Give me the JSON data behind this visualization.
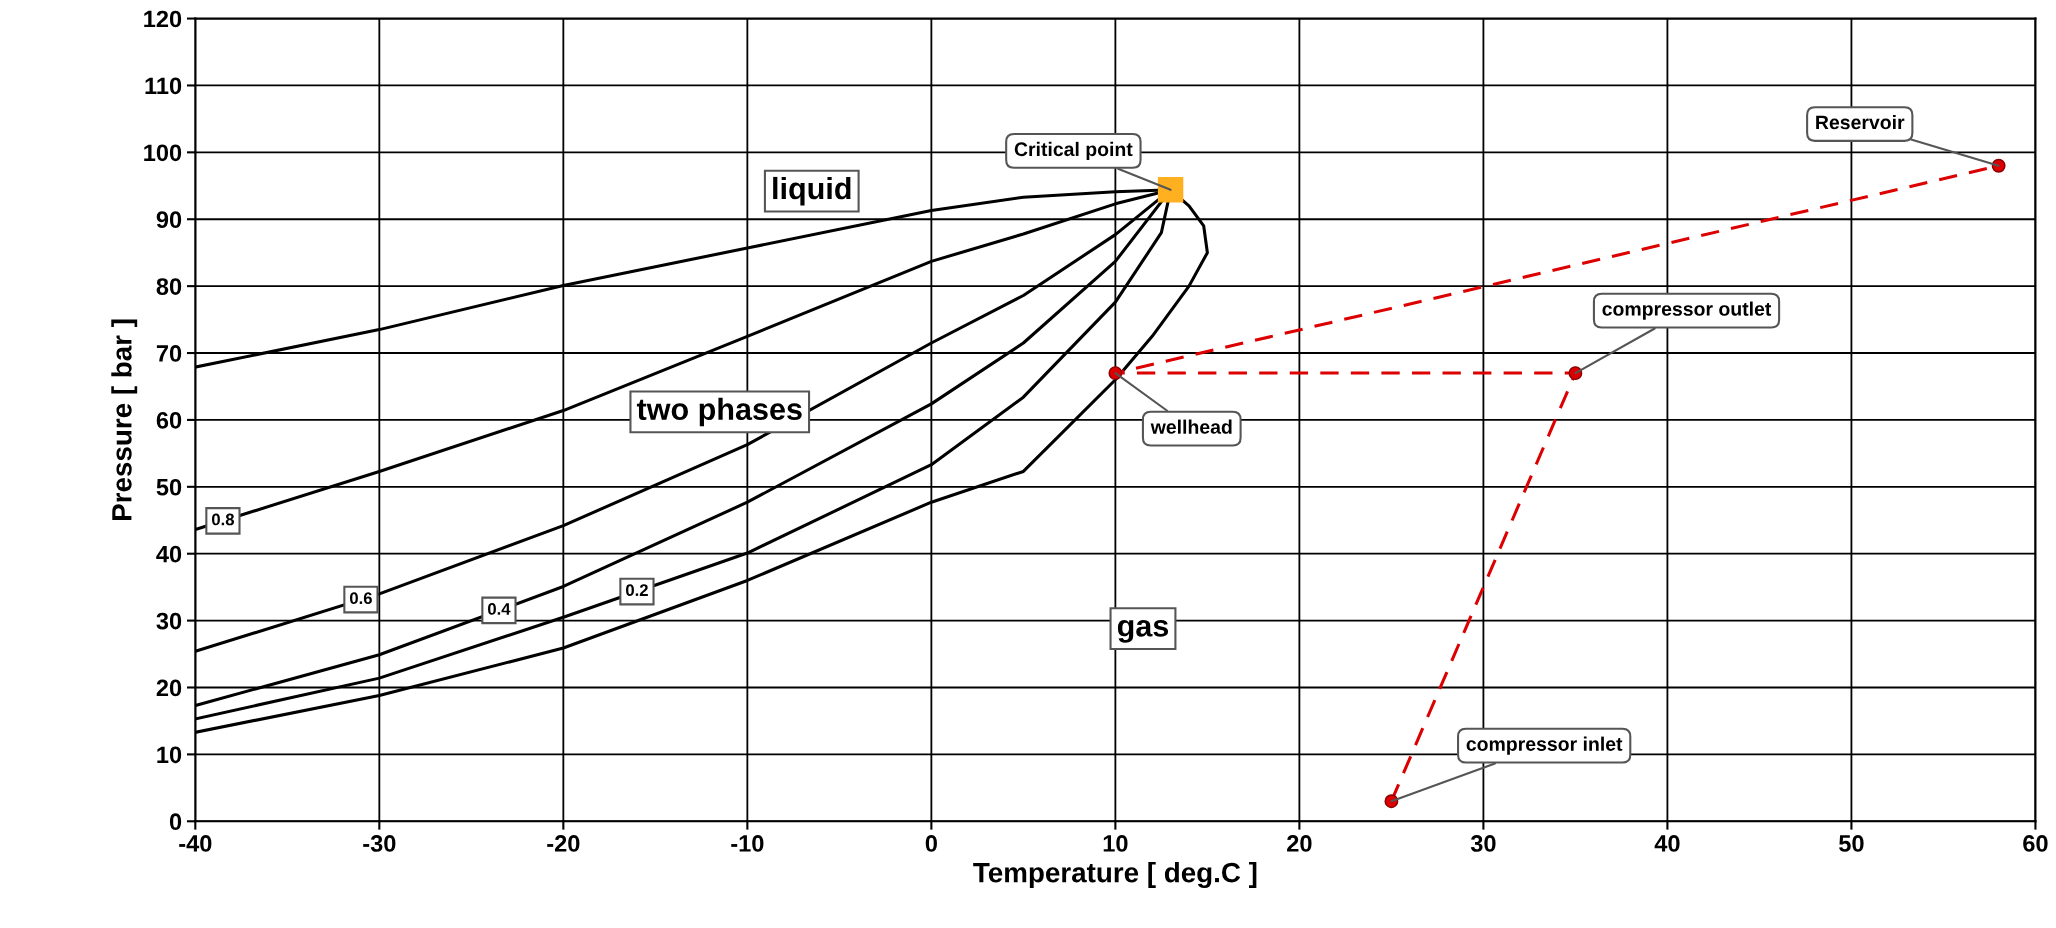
{
  "chart_data": {
    "type": "line",
    "xlabel": "Temperature [ deg.C ]",
    "ylabel": "Pressure [ bar ]",
    "xlim": [
      -40,
      60
    ],
    "ylim": [
      0,
      120
    ],
    "xticks": [
      -40,
      -30,
      -20,
      -10,
      0,
      10,
      20,
      30,
      40,
      50,
      60
    ],
    "yticks": [
      0,
      10,
      20,
      30,
      40,
      50,
      60,
      70,
      80,
      90,
      100,
      110,
      120
    ],
    "grid": true,
    "legend": false,
    "series": [
      {
        "color": "#000000",
        "line_style": "solid",
        "marker": "none",
        "x": [
          -40,
          -30,
          -20,
          -10,
          0,
          5,
          10,
          13
        ],
        "values": [
          67.9,
          73.5,
          80.1,
          85.7,
          91.3,
          93.3,
          94.1,
          94.4
        ]
      },
      {
        "type": "line",
        "name": "0.8",
        "color": "#000000",
        "line_style": "solid",
        "marker": "none",
        "x": [
          -40,
          -30,
          -20,
          -10,
          0,
          5,
          10,
          13
        ],
        "values": [
          43.6,
          52.3,
          61.4,
          72.5,
          83.7,
          87.8,
          92.3,
          94.4
        ]
      },
      {
        "type": "line",
        "name": "0.6",
        "color": "#000000",
        "line_style": "solid",
        "marker": "none",
        "x": [
          -40,
          -30,
          -20,
          -10,
          0,
          5,
          10,
          13
        ],
        "values": [
          25.4,
          34,
          44.2,
          56.3,
          71.5,
          78.6,
          87.7,
          94.4
        ]
      },
      {
        "type": "line",
        "name": "0.4",
        "color": "#000000",
        "line_style": "solid",
        "marker": "none",
        "x": [
          -40,
          -30,
          -20,
          -10,
          0,
          5,
          10,
          13
        ],
        "values": [
          17.3,
          24.9,
          35.1,
          47.7,
          62.4,
          71.5,
          83.7,
          94.4
        ]
      },
      {
        "type": "line",
        "name": "0.2",
        "color": "#000000",
        "line_style": "solid",
        "marker": "none",
        "x": [
          -40,
          -30,
          -20,
          -10,
          0,
          5,
          10,
          12.5,
          13
        ],
        "values": [
          15.3,
          21.4,
          30.5,
          40.1,
          53.3,
          63.4,
          77.6,
          88,
          94.4
        ]
      },
      {
        "type": "line",
        "color": "#000000",
        "line_style": "solid",
        "marker": "none",
        "x": [
          -40,
          -30,
          -20,
          -10,
          0,
          5,
          10,
          12,
          14,
          15,
          14.8,
          14,
          13
        ],
        "values": [
          13.3,
          18.8,
          25.9,
          36,
          47.7,
          52.3,
          66,
          72.5,
          80,
          85,
          89,
          92,
          94.4
        ]
      },
      {
        "type": "line",
        "color": "#dd0000",
        "line_style": "dashed",
        "marker": "circle",
        "x": [
          25,
          35,
          10,
          58
        ],
        "values": [
          3,
          67,
          67,
          98
        ]
      },
      {
        "type": "scatter",
        "color": "#ffb020",
        "marker": "square",
        "x": [
          13
        ],
        "values": [
          94.4
        ]
      }
    ],
    "annotations": [
      {
        "text": "Critical point",
        "x": 13,
        "y": 94.4
      },
      {
        "text": "Reservoir",
        "x": 58,
        "y": 98
      },
      {
        "text": "compressor outlet",
        "x": 35,
        "y": 67
      },
      {
        "text": "wellhead",
        "x": 10,
        "y": 67
      },
      {
        "text": "compressor inlet",
        "x": 25,
        "y": 3
      },
      "liquid",
      "two phases",
      "gas"
    ]
  }
}
